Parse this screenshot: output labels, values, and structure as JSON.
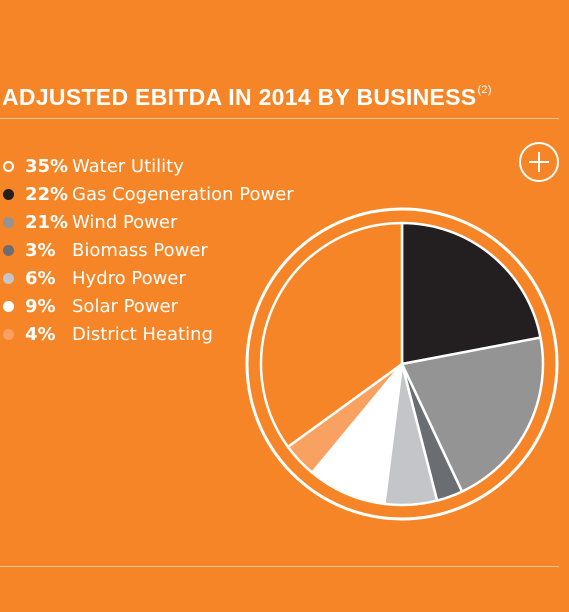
{
  "title": {
    "text": "ADJUSTED EBITDA IN 2014 BY BUSINESS",
    "footnote": "(2)"
  },
  "expand_icon": "plus-circle-icon",
  "chart_data": {
    "type": "pie",
    "title": "ADJUSTED EBITDA IN 2014 BY BUSINESS",
    "start": "12 o'clock",
    "direction": "clockwise",
    "slices": [
      {
        "label": "Gas Cogeneration Power",
        "value": 22,
        "pct_label": "22%",
        "color": "#231f20",
        "marker": "filled"
      },
      {
        "label": "Wind Power",
        "value": 21,
        "pct_label": "21%",
        "color": "#949494",
        "marker": "filled"
      },
      {
        "label": "Biomass Power",
        "value": 3,
        "pct_label": "3%",
        "color": "#6a6e73",
        "marker": "filled"
      },
      {
        "label": "Hydro Power",
        "value": 6,
        "pct_label": "6%",
        "color": "#c3c5c8",
        "marker": "filled"
      },
      {
        "label": "Solar Power",
        "value": 9,
        "pct_label": "9%",
        "color": "#ffffff",
        "marker": "filled"
      },
      {
        "label": "District Heating",
        "value": 4,
        "pct_label": "4%",
        "color": "#f9a160",
        "marker": "filled"
      },
      {
        "label": "Water Utility",
        "value": 35,
        "pct_label": "35%",
        "color": "#f58526",
        "marker": "outline"
      }
    ],
    "legend_order": [
      "Water Utility",
      "Gas Cogeneration Power",
      "Wind Power",
      "Biomass Power",
      "Hydro Power",
      "Solar Power",
      "District Heating"
    ],
    "legend_position": "left"
  }
}
